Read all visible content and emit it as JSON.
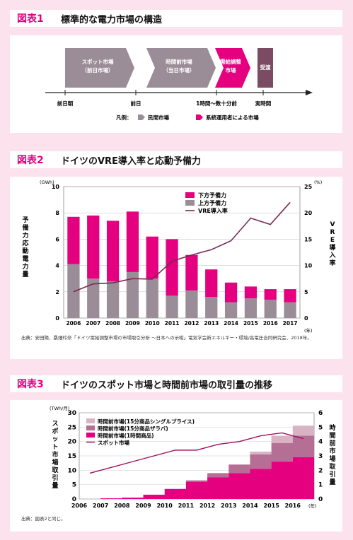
{
  "fig1": {
    "num": "図表1",
    "title": "標準的な電力市場の構造",
    "blocks": [
      {
        "line1": "スポット市場",
        "line2": "（前日市場）",
        "color": "#9b8d97"
      },
      {
        "line1": "時間前市場",
        "line2": "（当日市場）",
        "color": "#9b8d97"
      },
      {
        "line1": "需給調整",
        "line2": "市場",
        "color": "#e4007f"
      },
      {
        "line1": "受渡",
        "line2": "",
        "color": "#7a4b63"
      }
    ],
    "timeline_labels": [
      "前日朝",
      "前日",
      "1時間～数十分前",
      "実時間"
    ],
    "legend_prefix": "凡例：",
    "legend_items": [
      {
        "label": "民間市場",
        "color": "#9b8d97"
      },
      {
        "label": "系統運用者による市場",
        "color": "#e4007f"
      }
    ]
  },
  "fig2": {
    "num": "図表2",
    "title": "ドイツのVRE導入率と応動予備力",
    "left_unit": "(GWh)",
    "right_unit": "(%)",
    "ylabel_left": "予備力応動電力量",
    "ylabel_right": "VRE導入率",
    "x_unit": "(年)",
    "source": "出典：安田陽、桑畑玲奈「ドイツ需給調整市場の市場取引分析 ～日本への示唆」電気学会新エネルギー・環境/高電圧合同研究会、2018年。",
    "colors": {
      "down": "#e4007f",
      "up": "#9b8d97",
      "vre": "#7a2a52"
    }
  },
  "fig3": {
    "num": "図表3",
    "title": "ドイツのスポット市場と時間前市場の取引量の推移",
    "left_unit": "(TWh/月)",
    "ylabel_left": "スポット市場取引量",
    "ylabel_right": "時間前市場取引量",
    "x_unit": "(年)",
    "source": "出典：図表2と同じ。",
    "colors": {
      "single": "#d8b3c4",
      "zaraba": "#b56f94",
      "hourly": "#e4007f",
      "spot": "#a01060"
    }
  },
  "chart_data": [
    {
      "type": "bar",
      "title": "ドイツのVRE導入率と応動予備力",
      "categories": [
        "2006",
        "2007",
        "2008",
        "2009",
        "2010",
        "2011",
        "2012",
        "2013",
        "2014",
        "2015",
        "2016",
        "2017"
      ],
      "series": [
        {
          "name": "上方予備力",
          "values": [
            4.1,
            3.0,
            2.8,
            3.5,
            3.0,
            1.7,
            2.1,
            1.6,
            1.2,
            1.5,
            1.4,
            1.2
          ]
        },
        {
          "name": "下方予備力",
          "values": [
            3.6,
            4.8,
            4.6,
            4.6,
            3.2,
            4.3,
            2.7,
            2.1,
            1.5,
            0.9,
            0.8,
            1.0
          ]
        },
        {
          "name": "VRE導入率",
          "axis": "right",
          "values": [
            5.0,
            6.5,
            6.7,
            7.5,
            7.4,
            10.8,
            12.0,
            13.0,
            14.7,
            19.0,
            17.8,
            22.0
          ]
        }
      ],
      "stacked": true,
      "ylim": [
        0,
        10
      ],
      "y2lim": [
        0,
        25
      ],
      "yticks": [
        0,
        2,
        4,
        6,
        8,
        10
      ],
      "y2ticks": [
        0,
        5,
        10,
        15,
        20,
        25
      ],
      "legend_position": "top-center"
    },
    {
      "type": "area",
      "title": "ドイツのスポット市場と時間前市場の取引量の推移",
      "x": [
        "2006",
        "2007",
        "2008",
        "2009",
        "2010",
        "2011",
        "2012",
        "2013",
        "2014",
        "2015",
        "2016"
      ],
      "series": [
        {
          "name": "時間前市場(1時間商品)",
          "axis": "right",
          "values": [
            0.0,
            0.05,
            0.1,
            0.3,
            0.7,
            1.2,
            1.5,
            1.8,
            2.1,
            2.6,
            2.9
          ]
        },
        {
          "name": "時間前市場(15分商品ザラバ)",
          "axis": "right",
          "values": [
            0.0,
            0.0,
            0.0,
            0.0,
            0.0,
            0.1,
            0.3,
            0.6,
            1.0,
            1.3,
            1.5
          ]
        },
        {
          "name": "時間前市場(15分商品シングルプライス)",
          "axis": "right",
          "values": [
            0.0,
            0.0,
            0.0,
            0.0,
            0.0,
            0.0,
            0.0,
            0.0,
            0.2,
            0.5,
            0.7
          ]
        },
        {
          "name": "スポット市場",
          "axis": "left",
          "values": [
            9,
            11,
            13,
            15,
            17,
            17,
            19,
            20,
            22,
            23,
            21
          ]
        }
      ],
      "stacked": true,
      "ylim": [
        0,
        30
      ],
      "y2lim": [
        0,
        6
      ],
      "yticks": [
        0,
        5,
        10,
        15,
        20,
        25,
        30
      ],
      "y2ticks": [
        0,
        1,
        2,
        3,
        4,
        5,
        6
      ],
      "legend_position": "top-left"
    }
  ]
}
